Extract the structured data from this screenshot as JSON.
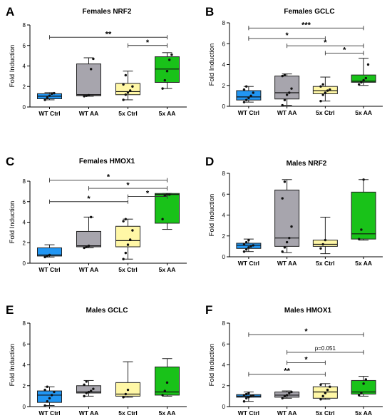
{
  "figure": {
    "background": "#ffffff"
  },
  "categories": [
    "WT Ctrl",
    "WT AA",
    "5x Ctrl",
    "5x AA"
  ],
  "colors": [
    "#2196f3",
    "#a7a5ad",
    "#fff7a6",
    "#19c219"
  ],
  "chart_data": [
    {
      "type": "box",
      "panel_label": "A",
      "title": "Females NRF2",
      "ylabel": "Fold  Induction",
      "ylim": [
        0,
        8
      ],
      "yticks": [
        0,
        2,
        4,
        6,
        8
      ],
      "categories": [
        "WT Ctrl",
        "WT AA",
        "5x Ctrl",
        "5x AA"
      ],
      "boxes": [
        {
          "min": 0.7,
          "q1": 0.8,
          "median": 1.05,
          "q3": 1.3,
          "max": 1.4,
          "points": [
            0.7,
            0.9,
            1.1,
            1.3,
            1.35
          ]
        },
        {
          "min": 1.05,
          "q1": 1.1,
          "median": 1.2,
          "q3": 4.2,
          "max": 4.8,
          "points": [
            1.05,
            1.1,
            1.15,
            3.7,
            4.7
          ]
        },
        {
          "min": 0.7,
          "q1": 1.2,
          "median": 1.5,
          "q3": 2.3,
          "max": 3.5,
          "points": [
            0.7,
            1.2,
            1.4,
            1.6,
            2.0,
            2.2,
            3.1
          ]
        },
        {
          "min": 1.8,
          "q1": 2.4,
          "median": 3.7,
          "q3": 4.9,
          "max": 5.3,
          "points": [
            1.8,
            2.6,
            3.5,
            4.6,
            5.1
          ]
        }
      ],
      "significance": [
        {
          "from": 0,
          "to": 3,
          "y": 6.8,
          "label": "**"
        },
        {
          "from": 2,
          "to": 3,
          "y": 6.0,
          "label": "*"
        }
      ]
    },
    {
      "type": "box",
      "panel_label": "B",
      "title": "Females GCLC",
      "ylabel": "Fold  Induction",
      "ylim": [
        0,
        8
      ],
      "yticks": [
        0,
        2,
        4,
        6,
        8
      ],
      "categories": [
        "WT Ctrl",
        "WT AA",
        "5x Ctrl",
        "5x AA"
      ],
      "boxes": [
        {
          "min": 0.4,
          "q1": 0.6,
          "median": 0.9,
          "q3": 1.5,
          "max": 1.9,
          "points": [
            0.4,
            0.6,
            0.8,
            1.0,
            1.3,
            1.6,
            1.9
          ]
        },
        {
          "min": 0.1,
          "q1": 0.7,
          "median": 1.3,
          "q3": 2.9,
          "max": 3.1,
          "points": [
            0.1,
            0.6,
            1.1,
            1.3,
            1.7,
            2.9,
            3.0
          ]
        },
        {
          "min": 0.5,
          "q1": 1.2,
          "median": 1.5,
          "q3": 1.9,
          "max": 2.8,
          "points": [
            0.5,
            1.1,
            1.3,
            1.5,
            1.6,
            1.9,
            2.1
          ]
        },
        {
          "min": 2.0,
          "q1": 2.3,
          "median": 2.4,
          "q3": 3.0,
          "max": 4.6,
          "points": [
            2.1,
            2.3,
            2.5,
            2.7,
            4.0
          ]
        }
      ],
      "significance": [
        {
          "from": 0,
          "to": 3,
          "y": 7.5,
          "label": "***"
        },
        {
          "from": 0,
          "to": 2,
          "y": 6.5,
          "label": "*"
        },
        {
          "from": 1,
          "to": 3,
          "y": 5.8,
          "label": "*"
        },
        {
          "from": 2,
          "to": 3,
          "y": 5.1,
          "label": "*"
        }
      ]
    },
    {
      "type": "box",
      "panel_label": "C",
      "title": "Females HMOX1",
      "ylabel": "Fold  Induction",
      "ylim": [
        0,
        8
      ],
      "yticks": [
        0,
        2,
        4,
        6,
        8
      ],
      "categories": [
        "WT Ctrl",
        "WT AA",
        "5x Ctrl",
        "5x AA"
      ],
      "boxes": [
        {
          "min": 0.6,
          "q1": 0.7,
          "median": 0.8,
          "q3": 1.5,
          "max": 1.8,
          "points": [
            0.6,
            0.7,
            0.8
          ]
        },
        {
          "min": 1.5,
          "q1": 1.6,
          "median": 1.7,
          "q3": 3.1,
          "max": 4.5,
          "points": [
            1.5,
            1.6,
            1.7,
            4.5
          ]
        },
        {
          "min": 0.4,
          "q1": 1.6,
          "median": 2.2,
          "q3": 3.6,
          "max": 4.3,
          "points": [
            0.4,
            1.0,
            1.8,
            2.3,
            3.2,
            4.1,
            4.3
          ]
        },
        {
          "min": 3.3,
          "q1": 3.9,
          "median": 6.7,
          "q3": 6.8,
          "max": 6.8,
          "points": [
            4.3,
            6.6,
            6.7,
            6.7
          ]
        }
      ],
      "significance": [
        {
          "from": 0,
          "to": 3,
          "y": 8.1,
          "label": "*"
        },
        {
          "from": 1,
          "to": 3,
          "y": 7.3,
          "label": "*"
        },
        {
          "from": 2,
          "to": 3,
          "y": 6.5,
          "label": "*"
        },
        {
          "from": 0,
          "to": 2,
          "y": 6.0,
          "label": "*"
        }
      ]
    },
    {
      "type": "box",
      "panel_label": "D",
      "title": "Males NRF2",
      "ylabel": "Fold  Induction",
      "ylim": [
        0,
        8
      ],
      "yticks": [
        0,
        2,
        4,
        6,
        8
      ],
      "categories": [
        "WT Ctrl",
        "WT AA",
        "5x Ctrl",
        "5x AA"
      ],
      "boxes": [
        {
          "min": 0.5,
          "q1": 0.8,
          "median": 1.1,
          "q3": 1.3,
          "max": 1.7,
          "points": [
            0.5,
            0.7,
            0.9,
            1.0,
            1.1,
            1.2,
            1.4,
            1.6
          ]
        },
        {
          "min": 0.4,
          "q1": 1.0,
          "median": 1.8,
          "q3": 6.4,
          "max": 7.4,
          "points": [
            0.5,
            0.9,
            1.4,
            1.8,
            2.9,
            5.6,
            7.2
          ]
        },
        {
          "min": 0.3,
          "q1": 1.0,
          "median": 1.2,
          "q3": 1.6,
          "max": 3.8,
          "points": [
            0.8,
            1.2,
            1.6
          ]
        },
        {
          "min": 1.6,
          "q1": 1.7,
          "median": 2.2,
          "q3": 6.2,
          "max": 7.4,
          "points": [
            1.7,
            2.6,
            7.4
          ]
        }
      ],
      "significance": []
    },
    {
      "type": "box",
      "panel_label": "E",
      "title": "Males GCLC",
      "ylabel": "Fold  Induction",
      "ylim": [
        0,
        8
      ],
      "yticks": [
        0,
        2,
        4,
        6,
        8
      ],
      "categories": [
        "WT Ctrl",
        "WT AA",
        "5x Ctrl",
        "5x AA"
      ],
      "boxes": [
        {
          "min": 0.1,
          "q1": 0.4,
          "median": 1.1,
          "q3": 1.5,
          "max": 1.9,
          "points": [
            0.1,
            0.5,
            0.8,
            1.1,
            1.4,
            1.6,
            1.9
          ]
        },
        {
          "min": 1.0,
          "q1": 1.3,
          "median": 1.4,
          "q3": 2.0,
          "max": 2.5,
          "points": [
            1.0,
            1.3,
            1.4,
            1.5,
            1.7,
            2.1,
            2.4
          ]
        },
        {
          "min": 0.9,
          "q1": 1.0,
          "median": 1.2,
          "q3": 2.3,
          "max": 4.3,
          "points": [
            0.9,
            1.2,
            1.6
          ]
        },
        {
          "min": 1.0,
          "q1": 1.1,
          "median": 1.4,
          "q3": 3.8,
          "max": 4.6,
          "points": [
            1.1,
            1.5,
            2.3
          ]
        }
      ],
      "significance": []
    },
    {
      "type": "box",
      "panel_label": "F",
      "title": "Males HMOX1",
      "ylabel": "Fold  Induction",
      "ylim": [
        0,
        8
      ],
      "yticks": [
        0,
        2,
        4,
        6,
        8
      ],
      "categories": [
        "WT Ctrl",
        "WT AA",
        "5x Ctrl",
        "5x AA"
      ],
      "boxes": [
        {
          "min": 0.5,
          "q1": 0.9,
          "median": 1.0,
          "q3": 1.15,
          "max": 1.4,
          "points": [
            0.5,
            0.8,
            0.9,
            1.0,
            1.05,
            1.1,
            1.2,
            1.3
          ]
        },
        {
          "min": 0.8,
          "q1": 0.9,
          "median": 1.1,
          "q3": 1.4,
          "max": 1.5,
          "points": [
            0.8,
            1.0,
            1.1,
            1.3,
            1.4
          ]
        },
        {
          "min": 0.7,
          "q1": 0.8,
          "median": 1.4,
          "q3": 1.9,
          "max": 2.2,
          "points": [
            0.7,
            1.0,
            1.3,
            1.6,
            1.9,
            2.1
          ]
        },
        {
          "min": 1.0,
          "q1": 1.2,
          "median": 1.4,
          "q3": 2.5,
          "max": 2.9,
          "points": [
            1.1,
            1.3,
            2.2,
            2.6
          ]
        }
      ],
      "significance": [
        {
          "from": 0,
          "to": 3,
          "y": 6.9,
          "label": "*"
        },
        {
          "from": 1,
          "to": 3,
          "y": 5.2,
          "label": "p=0.051"
        },
        {
          "from": 1,
          "to": 2,
          "y": 4.2,
          "label": "*"
        },
        {
          "from": 0,
          "to": 2,
          "y": 3.1,
          "label": "**"
        }
      ]
    }
  ]
}
